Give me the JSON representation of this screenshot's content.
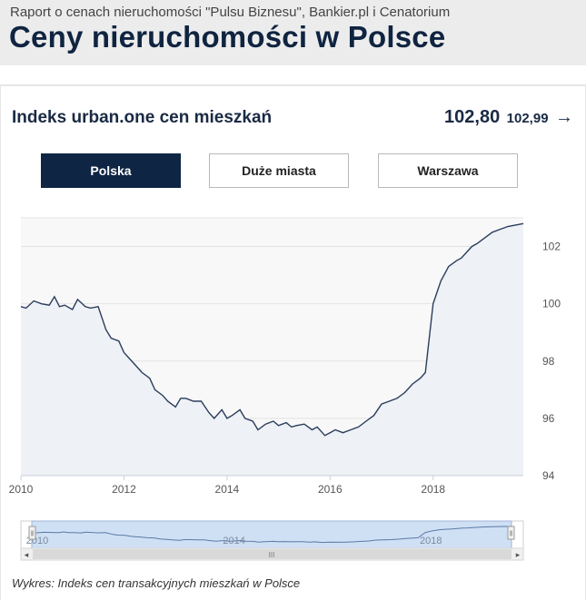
{
  "header": {
    "kicker": "Raport o cenach nieruchomości \"Pulsu Biznesu\", Bankier.pl i Cenatorium",
    "title": "Ceny nieruchomości w Polsce"
  },
  "index": {
    "title": "Indeks urban.one cen mieszkań",
    "value_main": "102,80",
    "value_secondary": "102,99",
    "arrow": "→"
  },
  "tabs": [
    {
      "label": "Polska",
      "active": true
    },
    {
      "label": "Duże miasta",
      "active": false
    },
    {
      "label": "Warszawa",
      "active": false
    }
  ],
  "navigator": {
    "scroll_left": "◂",
    "scroll_right": "▸",
    "grip": "III",
    "handle": "‖",
    "years": [
      "2010",
      "2014",
      "2018"
    ]
  },
  "caption": "Wykres: Indeks cen transakcyjnych mieszkań w Polsce",
  "colors": {
    "navy": "#0e2544",
    "line": "#2a3d5c",
    "grid": "#e3e3e3",
    "plot_bg": "#f8f8f8",
    "navigator_fill": "#cfe0f5"
  },
  "chart_data": {
    "type": "line",
    "title": "",
    "xlabel": "",
    "ylabel": "",
    "xlim": [
      2010,
      2019.75
    ],
    "ylim": [
      94,
      103
    ],
    "x_ticks": [
      2010,
      2012,
      2014,
      2016,
      2018
    ],
    "x_tick_labels": [
      "2010",
      "2012",
      "2014",
      "2016",
      "2018"
    ],
    "y_ticks": [
      94,
      96,
      98,
      100,
      102
    ],
    "y_tick_labels": [
      "94",
      "96",
      "98",
      "100",
      "102"
    ],
    "grid": true,
    "series": [
      {
        "name": "",
        "x": [
          2010.0,
          2010.1,
          2010.25,
          2010.4,
          2010.55,
          2010.65,
          2010.75,
          2010.85,
          2011.0,
          2011.1,
          2011.25,
          2011.35,
          2011.5,
          2011.65,
          2011.75,
          2011.9,
          2012.0,
          2012.1,
          2012.2,
          2012.35,
          2012.5,
          2012.6,
          2012.75,
          2012.85,
          2013.0,
          2013.1,
          2013.2,
          2013.35,
          2013.5,
          2013.65,
          2013.75,
          2013.9,
          2014.0,
          2014.1,
          2014.25,
          2014.35,
          2014.5,
          2014.6,
          2014.75,
          2014.9,
          2015.0,
          2015.15,
          2015.25,
          2015.35,
          2015.5,
          2015.65,
          2015.75,
          2015.9,
          2016.0,
          2016.1,
          2016.25,
          2016.4,
          2016.55,
          2016.7,
          2016.85,
          2017.0,
          2017.15,
          2017.3,
          2017.45,
          2017.6,
          2017.75,
          2017.85,
          2018.0,
          2018.15,
          2018.3,
          2018.45,
          2018.55,
          2018.65,
          2018.75,
          2018.85,
          2019.0,
          2019.15,
          2019.3,
          2019.45,
          2019.6,
          2019.75
        ],
        "values": [
          99.9,
          99.85,
          100.1,
          100.0,
          99.95,
          100.25,
          99.9,
          99.95,
          99.8,
          100.15,
          99.9,
          99.85,
          99.9,
          99.1,
          98.8,
          98.7,
          98.3,
          98.1,
          97.9,
          97.6,
          97.4,
          97.0,
          96.8,
          96.6,
          96.4,
          96.7,
          96.7,
          96.6,
          96.6,
          96.2,
          96.0,
          96.3,
          96.0,
          96.1,
          96.3,
          96.0,
          95.9,
          95.6,
          95.8,
          95.9,
          95.75,
          95.85,
          95.7,
          95.75,
          95.8,
          95.6,
          95.7,
          95.4,
          95.5,
          95.6,
          95.5,
          95.6,
          95.7,
          95.9,
          96.1,
          96.5,
          96.6,
          96.7,
          96.9,
          97.2,
          97.4,
          97.6,
          100.0,
          100.8,
          101.3,
          101.5,
          101.6,
          101.8,
          102.0,
          102.1,
          102.3,
          102.5,
          102.6,
          102.7,
          102.75,
          102.8
        ]
      }
    ]
  }
}
